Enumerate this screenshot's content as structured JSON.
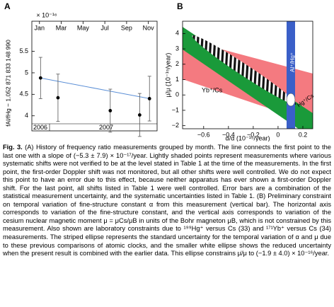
{
  "chart_data": [
    {
      "type": "scatter",
      "panel": "A",
      "y_label": "fAl/fHg − 1.052 871 833 148 990",
      "multiplier": "× 10⁻¹⁶",
      "x": [
        1.1,
        2.7,
        7.5,
        10.2,
        11.1
      ],
      "values": [
        4.88,
        4.42,
        4.12,
        4.02,
        4.4
      ],
      "errors": [
        0.48,
        0.55,
        0.5,
        0.5,
        0.52
      ],
      "color": "#000000",
      "line_color": "#5b8fd6",
      "xlim": [
        0.3,
        11.8
      ],
      "xticks": [
        {
          "value": 1,
          "label": "Jan"
        },
        {
          "value": 3,
          "label": "Mar"
        },
        {
          "value": 5,
          "label": "May"
        },
        {
          "value": 7,
          "label": "Jul"
        },
        {
          "value": 9,
          "label": "Sep"
        },
        {
          "value": 11,
          "label": "Nov"
        }
      ],
      "ylim": [
        3.65,
        6.2
      ],
      "yticks": [
        4,
        4.5,
        5,
        5.5
      ],
      "years": [
        "2006",
        "2007"
      ]
    },
    {
      "type": "region",
      "panel": "B",
      "x_label": "α̇/α (10⁻¹⁵/year)",
      "y_label": "μ̇/μ (10⁻¹⁵/year)",
      "band_labels": [
        "Yb⁺/Cs",
        "Hg⁺/Cs",
        "Al⁺/Hg⁺"
      ],
      "xlim": [
        -0.77,
        0.28
      ],
      "xticks": [
        {
          "value": -0.6,
          "label": "−0.6"
        },
        {
          "value": -0.4,
          "label": "−0.4"
        },
        {
          "value": -0.2,
          "label": "−0.2"
        },
        0,
        0.2
      ],
      "ylim": [
        -2.2,
        4.8
      ],
      "yticks": [
        {
          "value": -2,
          "label": "−2"
        },
        {
          "value": -1,
          "label": "−1"
        },
        0,
        1,
        2,
        3,
        4
      ]
    }
  ],
  "caption": {
    "label": "Fig. 3.",
    "text": "(A) History of frequency ratio measurements grouped by month. The line connects the first point to the last one with a slope of (−5.3 ± 7.9) × 10⁻¹⁷/year. Lightly shaded points represent measurements where various systematic shifts were not verified to be at the level stated in Table 1 at the time of the measurements. In the first point, the first-order Doppler shift was not monitored, but all other shifts were well controlled. We do not expect this point to have an error due to this effect, because neither apparatus has ever shown a first-order Doppler shift. For the last point, all shifts listed in Table 1 were well controlled. Error bars are a combination of the statistical measurement uncertainty, and the systematic uncertainties listed in Table 1. (B) Preliminary constraint on temporal variation of fine-structure constant α from this measurement (vertical bar). The horizontal axis corresponds to variation of the fine-structure constant, and the vertical axis corresponds to variation of the cesium nuclear magnetic moment μ = μCs/μB in units of the Bohr magneton μB, which is not constrained by this measurement. Also shown are laboratory constraints due to ¹⁹⁹Hg⁺ versus Cs (33) and ¹⁷¹Yb⁺ versus Cs (34) measurements. The striped ellipse represents the standard uncertainty for the temporal variation of α and μ due to these previous comparisons of atomic clocks, and the smaller white ellipse shows the reduced uncertainty when the present result is combined with the earlier data. This ellipse constrains μ̇/μ to (−1.9 ± 4.0) × 10⁻¹⁶/year."
  }
}
